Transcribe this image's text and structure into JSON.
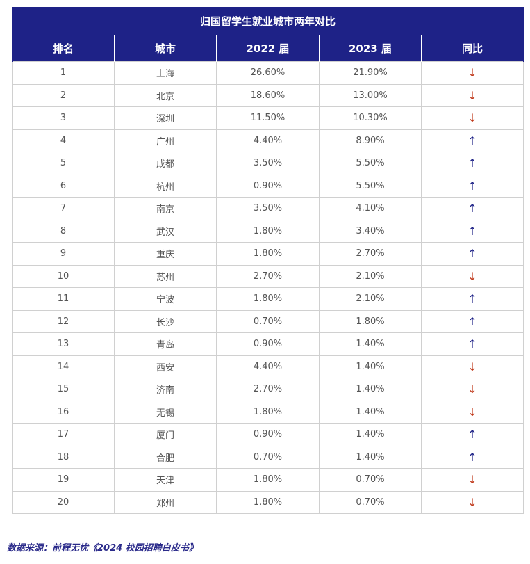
{
  "chart_data": {
    "type": "table",
    "title": "归国留学生就业城市两年对比",
    "columns": [
      "排名",
      "城市",
      "2022 届",
      "2023 届",
      "同比"
    ],
    "rows": [
      {
        "rank": "1",
        "city": "上海",
        "y2022": "26.60%",
        "y2023": "21.90%",
        "trend": "↓",
        "dir": "down"
      },
      {
        "rank": "2",
        "city": "北京",
        "y2022": "18.60%",
        "y2023": "13.00%",
        "trend": "↓",
        "dir": "down"
      },
      {
        "rank": "3",
        "city": "深圳",
        "y2022": "11.50%",
        "y2023": "10.30%",
        "trend": "↓",
        "dir": "down"
      },
      {
        "rank": "4",
        "city": "广州",
        "y2022": "4.40%",
        "y2023": "8.90%",
        "trend": "↑",
        "dir": "up"
      },
      {
        "rank": "5",
        "city": "成都",
        "y2022": "3.50%",
        "y2023": "5.50%",
        "trend": "↑",
        "dir": "up"
      },
      {
        "rank": "6",
        "city": "杭州",
        "y2022": "0.90%",
        "y2023": "5.50%",
        "trend": "↑",
        "dir": "up"
      },
      {
        "rank": "7",
        "city": "南京",
        "y2022": "3.50%",
        "y2023": "4.10%",
        "trend": "↑",
        "dir": "up"
      },
      {
        "rank": "8",
        "city": "武汉",
        "y2022": "1.80%",
        "y2023": "3.40%",
        "trend": "↑",
        "dir": "up"
      },
      {
        "rank": "9",
        "city": "重庆",
        "y2022": "1.80%",
        "y2023": "2.70%",
        "trend": "↑",
        "dir": "up"
      },
      {
        "rank": "10",
        "city": "苏州",
        "y2022": "2.70%",
        "y2023": "2.10%",
        "trend": "↓",
        "dir": "down"
      },
      {
        "rank": "11",
        "city": "宁波",
        "y2022": "1.80%",
        "y2023": "2.10%",
        "trend": "↑",
        "dir": "up"
      },
      {
        "rank": "12",
        "city": "长沙",
        "y2022": "0.70%",
        "y2023": "1.80%",
        "trend": "↑",
        "dir": "up"
      },
      {
        "rank": "13",
        "city": "青岛",
        "y2022": "0.90%",
        "y2023": "1.40%",
        "trend": "↑",
        "dir": "up"
      },
      {
        "rank": "14",
        "city": "西安",
        "y2022": "4.40%",
        "y2023": "1.40%",
        "trend": "↓",
        "dir": "down"
      },
      {
        "rank": "15",
        "city": "济南",
        "y2022": "2.70%",
        "y2023": "1.40%",
        "trend": "↓",
        "dir": "down"
      },
      {
        "rank": "16",
        "city": "无锡",
        "y2022": "1.80%",
        "y2023": "1.40%",
        "trend": "↓",
        "dir": "down"
      },
      {
        "rank": "17",
        "city": "厦门",
        "y2022": "0.90%",
        "y2023": "1.40%",
        "trend": "↑",
        "dir": "up"
      },
      {
        "rank": "18",
        "city": "合肥",
        "y2022": "0.70%",
        "y2023": "1.40%",
        "trend": "↑",
        "dir": "up"
      },
      {
        "rank": "19",
        "city": "天津",
        "y2022": "1.80%",
        "y2023": "0.70%",
        "trend": "↓",
        "dir": "down"
      },
      {
        "rank": "20",
        "city": "郑州",
        "y2022": "1.80%",
        "y2023": "0.70%",
        "trend": "↓",
        "dir": "down"
      }
    ],
    "colors": {
      "header_bg": "#1e2287",
      "down": "#c0391b",
      "up": "#1e2287"
    }
  },
  "source": "数据来源：前程无忧《2024 校园招聘白皮书》"
}
